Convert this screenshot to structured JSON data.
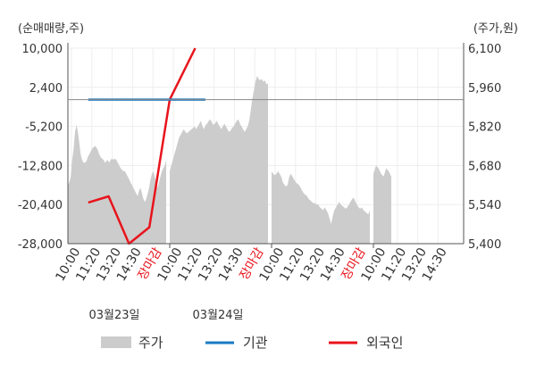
{
  "chart_data": {
    "type": "line",
    "left_axis_label": "(순매매량,주)",
    "right_axis_label": "(주가,원)",
    "left_ticks": [
      "10,000",
      "2,400",
      "-5,200",
      "-12,800",
      "-20,400",
      "-28,000"
    ],
    "right_ticks": [
      "6,100",
      "5,960",
      "5,820",
      "5,680",
      "5,540",
      "5,400"
    ],
    "left_ylim": [
      -28000,
      10000
    ],
    "right_ylim": [
      5400,
      6100
    ],
    "x_ticks": [
      {
        "label": "10:00",
        "red": false
      },
      {
        "label": "11:20",
        "red": false
      },
      {
        "label": "13:20",
        "red": false
      },
      {
        "label": "14:30",
        "red": false
      },
      {
        "label": "장마감",
        "red": true
      },
      {
        "label": "10:00",
        "red": false
      },
      {
        "label": "11:20",
        "red": false
      },
      {
        "label": "13:20",
        "red": false
      },
      {
        "label": "14:30",
        "red": false
      },
      {
        "label": "장마감",
        "red": true
      },
      {
        "label": "10:00",
        "red": false
      },
      {
        "label": "11:20",
        "red": false
      },
      {
        "label": "13:20",
        "red": false
      },
      {
        "label": "14:30",
        "red": false
      },
      {
        "label": "장마감",
        "red": true
      },
      {
        "label": "10:00",
        "red": false
      },
      {
        "label": "11:20",
        "red": false
      },
      {
        "label": "13:20",
        "red": false
      },
      {
        "label": "14:30",
        "red": false
      }
    ],
    "dates": [
      "03월23일",
      "03월24일"
    ],
    "legend": {
      "price": "주가",
      "institution": "기관",
      "foreign": "외국인"
    },
    "colors": {
      "price": "#cccccc",
      "institution": "#1a7bc4",
      "foreign": "#e8141c",
      "axis": "#555555",
      "text": "#333333"
    },
    "series_price": {
      "name": "주가",
      "segments": [
        [
          5610,
          5620,
          5640,
          5700,
          5740,
          5800,
          5825,
          5800,
          5760,
          5720,
          5700,
          5690,
          5690,
          5695,
          5710,
          5720,
          5730,
          5740,
          5745,
          5750,
          5745,
          5735,
          5720,
          5710,
          5705,
          5700,
          5690,
          5695,
          5700,
          5690,
          5700,
          5705,
          5700,
          5705,
          5700,
          5690,
          5680,
          5670,
          5665,
          5660,
          5660,
          5650,
          5640,
          5630,
          5620,
          5610,
          5600,
          5590,
          5580,
          5570,
          5590,
          5600,
          5580,
          5560,
          5550,
          5560,
          5580,
          5600,
          5630,
          5650,
          5660,
          5640,
          5620,
          5600,
          5620,
          5640,
          5660,
          5670,
          5680,
          5700
        ],
        [
          5660,
          5680,
          5700,
          5720,
          5740,
          5760,
          5780,
          5790,
          5800,
          5810,
          5800,
          5795,
          5800,
          5805,
          5810,
          5815,
          5820,
          5810,
          5820,
          5830,
          5840,
          5820,
          5810,
          5825,
          5830,
          5840,
          5845,
          5835,
          5825,
          5830,
          5840,
          5830,
          5820,
          5810,
          5820,
          5830,
          5820,
          5810,
          5800,
          5805,
          5815,
          5820,
          5830,
          5840,
          5845,
          5830,
          5820,
          5810,
          5800,
          5810,
          5820,
          5840,
          5880,
          5920,
          5950,
          5980,
          6000,
          5990,
          5985,
          5990,
          5980,
          5985,
          5970,
          5975
        ],
        [
          5660,
          5650,
          5645,
          5650,
          5660,
          5650,
          5640,
          5620,
          5610,
          5605,
          5610,
          5640,
          5650,
          5640,
          5630,
          5620,
          5615,
          5610,
          5600,
          5590,
          5580,
          5575,
          5570,
          5560,
          5555,
          5550,
          5545,
          5545,
          5540,
          5540,
          5530,
          5525,
          5520,
          5530,
          5520,
          5510,
          5490,
          5470,
          5500,
          5520,
          5530,
          5540,
          5550,
          5540,
          5535,
          5530,
          5525,
          5530,
          5540,
          5550,
          5560,
          5565,
          5550,
          5540,
          5530,
          5525,
          5530,
          5520,
          5515,
          5510,
          5505,
          5520
        ],
        [
          5650,
          5680,
          5670,
          5650,
          5640,
          5670,
          5660,
          5640
        ]
      ]
    },
    "series_institution": {
      "name": "기관",
      "x": [
        0.2,
        1.35
      ],
      "values": [
        0,
        0
      ]
    },
    "series_foreign": {
      "name": "외국인",
      "x": [
        0.2,
        0.4,
        0.6,
        0.8,
        1.0,
        1.25
      ],
      "values": [
        -20000,
        -18800,
        -28000,
        -24800,
        0,
        10000
      ]
    }
  }
}
